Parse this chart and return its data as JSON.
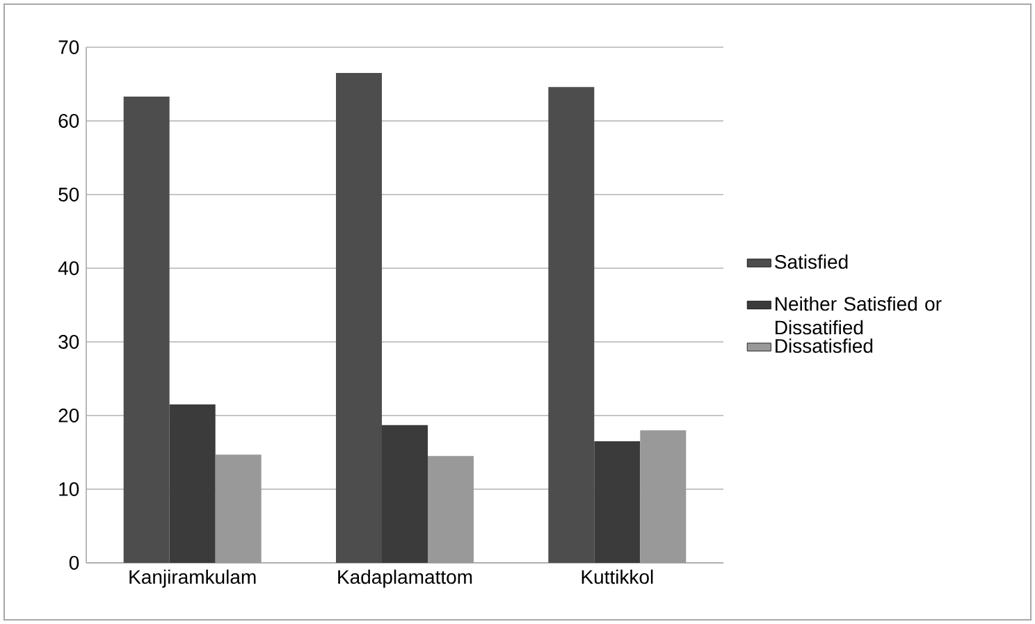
{
  "chart_data": {
    "type": "bar",
    "categories": [
      "Kanjiramkulam",
      "Kadaplamattom",
      "Kuttikkol"
    ],
    "series": [
      {
        "name": "Satisfied",
        "color": "#4d4d4d",
        "values": [
          63.3,
          66.5,
          64.6
        ]
      },
      {
        "name": "Neither Satisfied or Dissatified",
        "color": "#3b3b3b",
        "values": [
          21.5,
          18.7,
          16.5
        ]
      },
      {
        "name": "Dissatisfied",
        "color": "#999999",
        "values": [
          14.7,
          14.5,
          18.0
        ]
      }
    ],
    "ylim": [
      0,
      70
    ],
    "yticks": [
      0,
      10,
      20,
      30,
      40,
      50,
      60,
      70
    ],
    "grid": "y",
    "legend": "right"
  }
}
